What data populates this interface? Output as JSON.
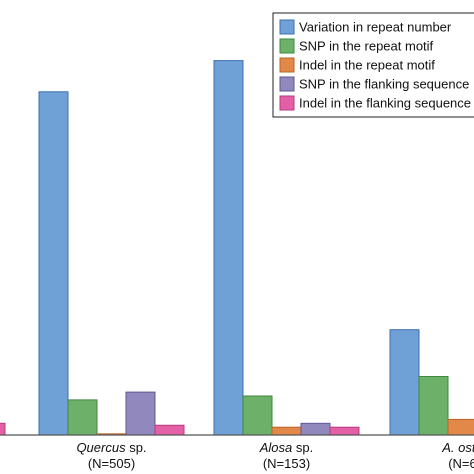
{
  "chart_data": {
    "type": "bar",
    "title": "",
    "xlabel": "",
    "ylabel": "",
    "ylim": [
      0,
      100
    ],
    "grid": false,
    "legend_position": "top-right",
    "categories": [
      {
        "italic": "",
        "plain": "",
        "n": ""
      },
      {
        "italic": "Quercus",
        "plain": " sp.",
        "n": "(N=505)"
      },
      {
        "italic": "Alosa",
        "plain": " sp.",
        "n": "(N=153)"
      },
      {
        "italic": "A. osto",
        "plain": "",
        "n": "(N=6"
      }
    ],
    "series": [
      {
        "name": "Variation in repeat number",
        "color": "#6fa1d6",
        "edge": "#3b6fb0",
        "values": [
          null,
          88,
          96,
          27
        ]
      },
      {
        "name": "SNP in the repeat motif",
        "color": "#6db06a",
        "edge": "#3e8a3c",
        "values": [
          null,
          9,
          10,
          15
        ]
      },
      {
        "name": "Indel in the repeat motif",
        "color": "#e2894a",
        "edge": "#b8632a",
        "values": [
          null,
          0.3,
          2,
          4
        ]
      },
      {
        "name": "SNP in the flanking sequence",
        "color": "#9189bd",
        "edge": "#5f5896",
        "values": [
          null,
          11,
          3,
          null
        ]
      },
      {
        "name": "Indel in the flanking sequence",
        "color": "#e35fa6",
        "edge": "#b83a7e",
        "values": [
          3,
          2.5,
          2,
          null
        ]
      }
    ]
  }
}
